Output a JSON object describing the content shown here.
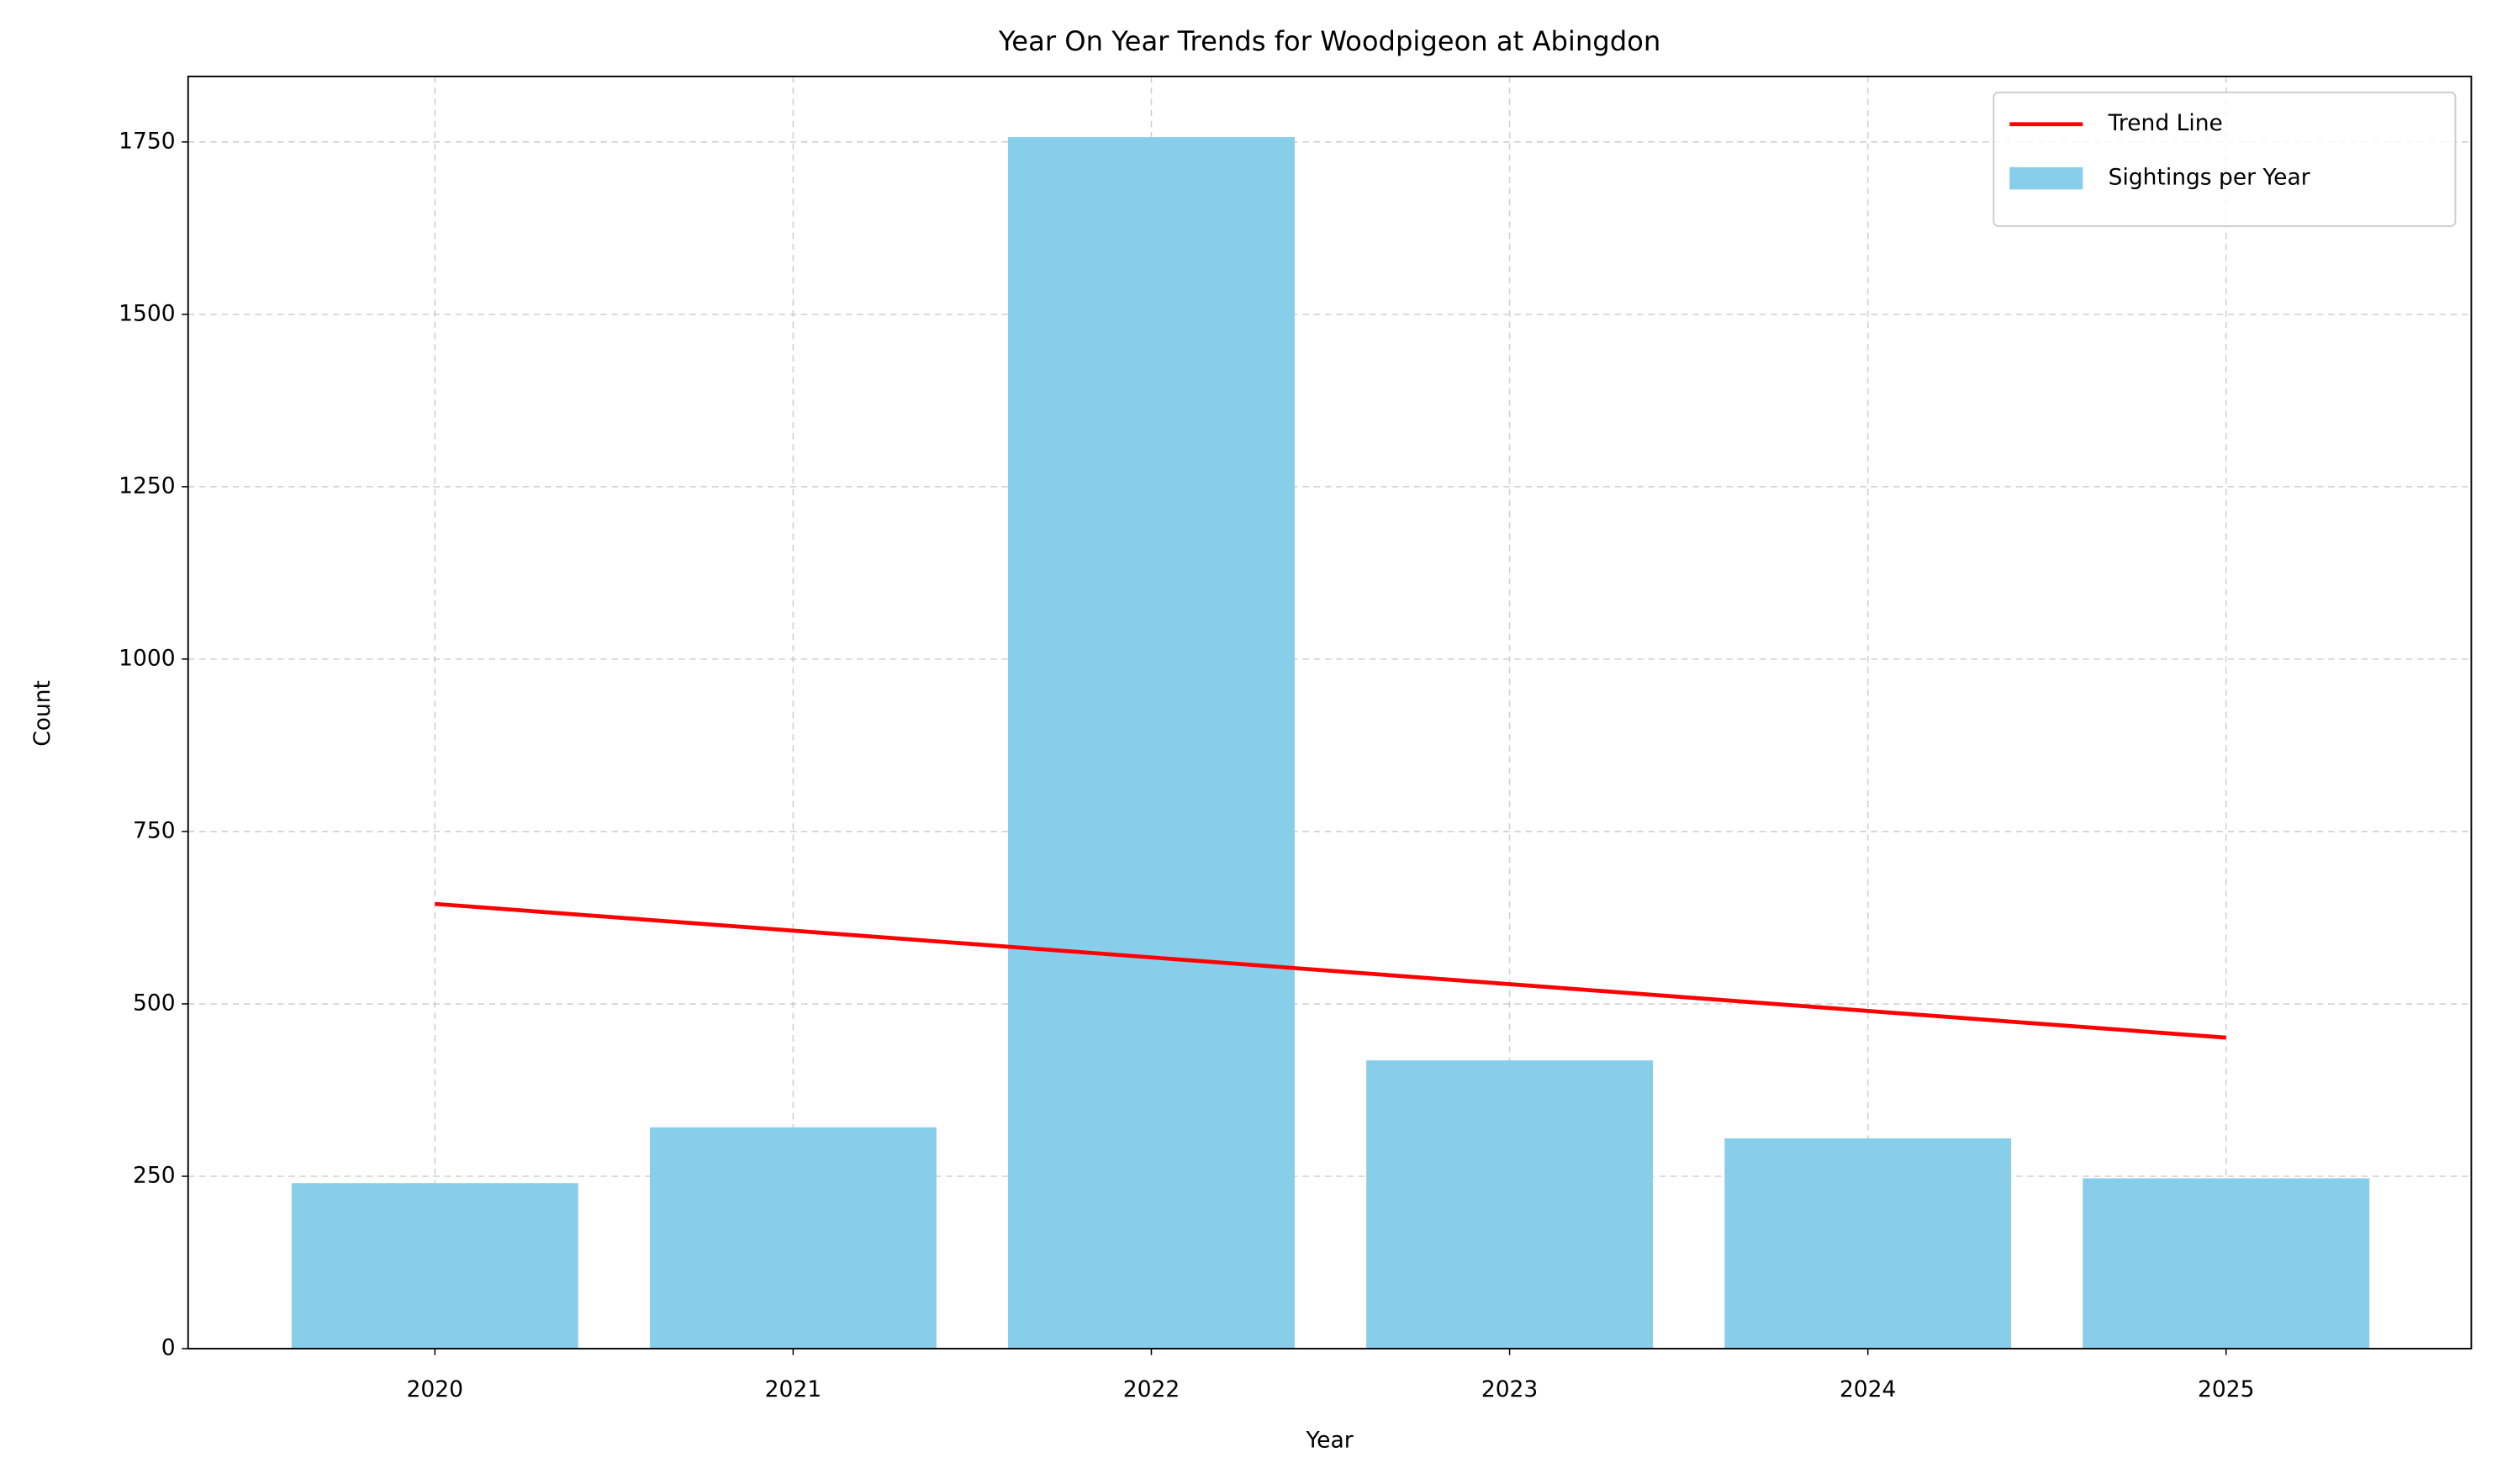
{
  "chart_data": {
    "type": "bar",
    "title": "Year On Year Trends for Woodpigeon at Abingdon",
    "x_label": "Year",
    "y_label": "Count",
    "categories": [
      "2020",
      "2021",
      "2022",
      "2023",
      "2024",
      "2025"
    ],
    "series": [
      {
        "name": "Sightings per Year",
        "type": "bar",
        "color": "#87ceeb",
        "values": [
          240,
          321,
          1757,
          418,
          305,
          247
        ]
      },
      {
        "name": "Trend Line",
        "type": "line",
        "color": "#ff0000",
        "values": [
          645,
          606.2,
          567.4,
          528.6,
          489.8,
          451
        ]
      }
    ],
    "ylim": [
      0,
      1845
    ],
    "yticks": [
      0,
      250,
      500,
      750,
      1000,
      1250,
      1500,
      1750
    ],
    "grid": true,
    "legend": "upper right"
  }
}
